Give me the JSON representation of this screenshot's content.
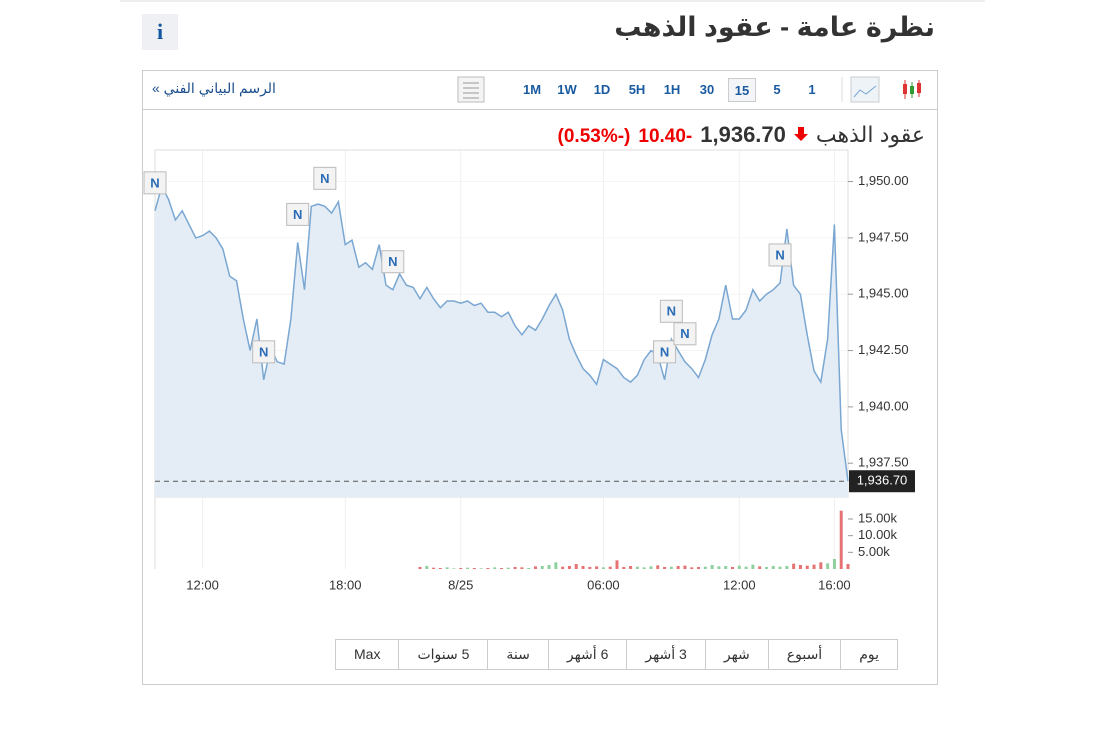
{
  "header": {
    "title": "نظرة عامة - عقود الذهب",
    "info": "i"
  },
  "toolbar": {
    "link": "الرسم البياني الفني »",
    "intervals": [
      "1M",
      "1W",
      "1D",
      "5H",
      "1H",
      "30",
      "15",
      "5",
      "1"
    ],
    "active_interval": 6
  },
  "quote": {
    "name": "عقود الذهب",
    "price": "1,936.70",
    "change": "-10.40",
    "percent": "(-0.53%)"
  },
  "chart_data": {
    "type": "area",
    "color": "#7aa7d2",
    "fill": "#e4edf5",
    "values": [
      1948.7,
      1949.8,
      1949.2,
      1948.3,
      1948.7,
      1948.1,
      1947.5,
      1947.6,
      1947.8,
      1947.5,
      1947.0,
      1945.8,
      1945.6,
      1943.9,
      1942.5,
      1943.9,
      1941.2,
      1942.6,
      1942.0,
      1941.9,
      1943.9,
      1947.3,
      1945.2,
      1948.9,
      1949.0,
      1948.9,
      1948.6,
      1949.1,
      1947.2,
      1947.4,
      1946.2,
      1946.4,
      1946.1,
      1947.2,
      1945.4,
      1945.2,
      1945.9,
      1945.4,
      1945.3,
      1944.8,
      1945.3,
      1944.8,
      1944.4,
      1944.7,
      1944.7,
      1944.6,
      1944.7,
      1944.5,
      1944.6,
      1944.2,
      1944.2,
      1944.0,
      1944.2,
      1943.6,
      1943.2,
      1943.6,
      1943.4,
      1943.9,
      1944.5,
      1945.0,
      1944.3,
      1943.0,
      1942.3,
      1941.7,
      1941.4,
      1941.0,
      1942.1,
      1941.9,
      1941.7,
      1941.3,
      1941.1,
      1941.4,
      1942.1,
      1942.5,
      1942.3,
      1941.2,
      1943.0,
      1942.5,
      1942.0,
      1941.7,
      1941.3,
      1942.1,
      1943.2,
      1943.9,
      1945.4,
      1943.9,
      1943.9,
      1944.3,
      1945.2,
      1944.7,
      1945.0,
      1945.2,
      1945.5,
      1947.9,
      1945.4,
      1945.0,
      1943.2,
      1941.6,
      1941.1,
      1943.0,
      1948.1,
      1939.0,
      1936.7
    ],
    "xlim": [
      0,
      102
    ],
    "xticks": [
      {
        "value": 7,
        "label": "12:00"
      },
      {
        "value": 28,
        "label": "18:00"
      },
      {
        "value": 45,
        "label": "8/25"
      },
      {
        "value": 66,
        "label": "06:00"
      },
      {
        "value": 86,
        "label": "12:00"
      },
      {
        "value": 100,
        "label": "16:00"
      }
    ],
    "ylim": [
      1936,
      1951.4
    ],
    "yticks": [
      {
        "value": 1950,
        "label": "1,950.00"
      },
      {
        "value": 1947.5,
        "label": "1,947.50"
      },
      {
        "value": 1945,
        "label": "1,945.00"
      },
      {
        "value": 1942.5,
        "label": "1,942.50"
      },
      {
        "value": 1940,
        "label": "1,940.00"
      },
      {
        "value": 1937.5,
        "label": "1,937.50"
      }
    ],
    "last": {
      "value": 1936.7,
      "label": "1,936.70"
    },
    "grid": true,
    "news": [
      {
        "label": "N",
        "x": 0
      },
      {
        "label": "N",
        "x": 16
      },
      {
        "label": "N",
        "x": 21
      },
      {
        "label": "N",
        "x": 25
      },
      {
        "label": "N",
        "x": 35
      },
      {
        "label": "N",
        "x": 75
      },
      {
        "label": "N",
        "x": 76
      },
      {
        "label": "N",
        "x": 78
      },
      {
        "label": "N",
        "x": 92
      }
    ],
    "volume": {
      "up_color": "#8fd19e",
      "down_color": "#e57373",
      "ylim": [
        0,
        19200
      ],
      "yticks": [
        {
          "value": 15000,
          "label": "15.00k"
        },
        {
          "value": 10000,
          "label": "10.00k"
        },
        {
          "value": 5000,
          "label": "5.00k"
        }
      ],
      "values": [
        null,
        null,
        null,
        null,
        null,
        null,
        null,
        null,
        null,
        null,
        null,
        null,
        null,
        null,
        null,
        null,
        null,
        null,
        null,
        null,
        null,
        null,
        null,
        null,
        null,
        null,
        null,
        null,
        null,
        null,
        null,
        null,
        null,
        null,
        null,
        null,
        null,
        null,
        null,
        600,
        900,
        400,
        300,
        500,
        200,
        300,
        400,
        300,
        200,
        300,
        500,
        300,
        400,
        600,
        500,
        300,
        800,
        900,
        1200,
        2000,
        700,
        900,
        1500,
        900,
        600,
        800,
        500,
        700,
        2600,
        600,
        900,
        700,
        500,
        800,
        1100,
        600,
        700,
        900,
        1000,
        500,
        600,
        700,
        1200,
        800,
        900,
        600,
        1000,
        700,
        1300,
        800,
        600,
        900,
        700,
        900,
        1600,
        1200,
        1000,
        1300,
        2000,
        1700,
        3000,
        17500,
        1500
      ]
    }
  },
  "ranges": [
    "يوم",
    "أسبوع",
    "شهر",
    "3 أشهر",
    "6 أشهر",
    "سنة",
    "5 سنوات",
    "Max"
  ]
}
